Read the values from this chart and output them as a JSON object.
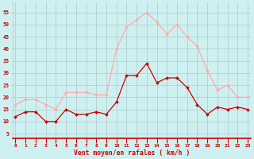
{
  "hours": [
    0,
    1,
    2,
    3,
    4,
    5,
    6,
    7,
    8,
    9,
    10,
    11,
    12,
    13,
    14,
    15,
    16,
    17,
    18,
    19,
    20,
    21,
    22,
    23
  ],
  "vent_moyen": [
    12,
    14,
    14,
    10,
    10,
    15,
    13,
    13,
    14,
    13,
    18,
    29,
    29,
    34,
    26,
    28,
    28,
    24,
    17,
    13,
    16,
    15,
    16,
    15
  ],
  "rafales": [
    17,
    19,
    19,
    17,
    15,
    22,
    22,
    22,
    21,
    21,
    40,
    49,
    52,
    55,
    51,
    46,
    50,
    45,
    41,
    31,
    23,
    25,
    20,
    20
  ],
  "color_moyen": "#cc0000",
  "color_rafales": "#ffaaaa",
  "bg_color": "#cff0f0",
  "grid_color": "#aacccc",
  "xlabel": "Vent moyen/en rafales ( km/h )",
  "ylabel_ticks": [
    5,
    10,
    15,
    20,
    25,
    30,
    35,
    40,
    45,
    50,
    55
  ],
  "ylim": [
    3,
    59
  ],
  "xlim": [
    -0.3,
    23.3
  ]
}
